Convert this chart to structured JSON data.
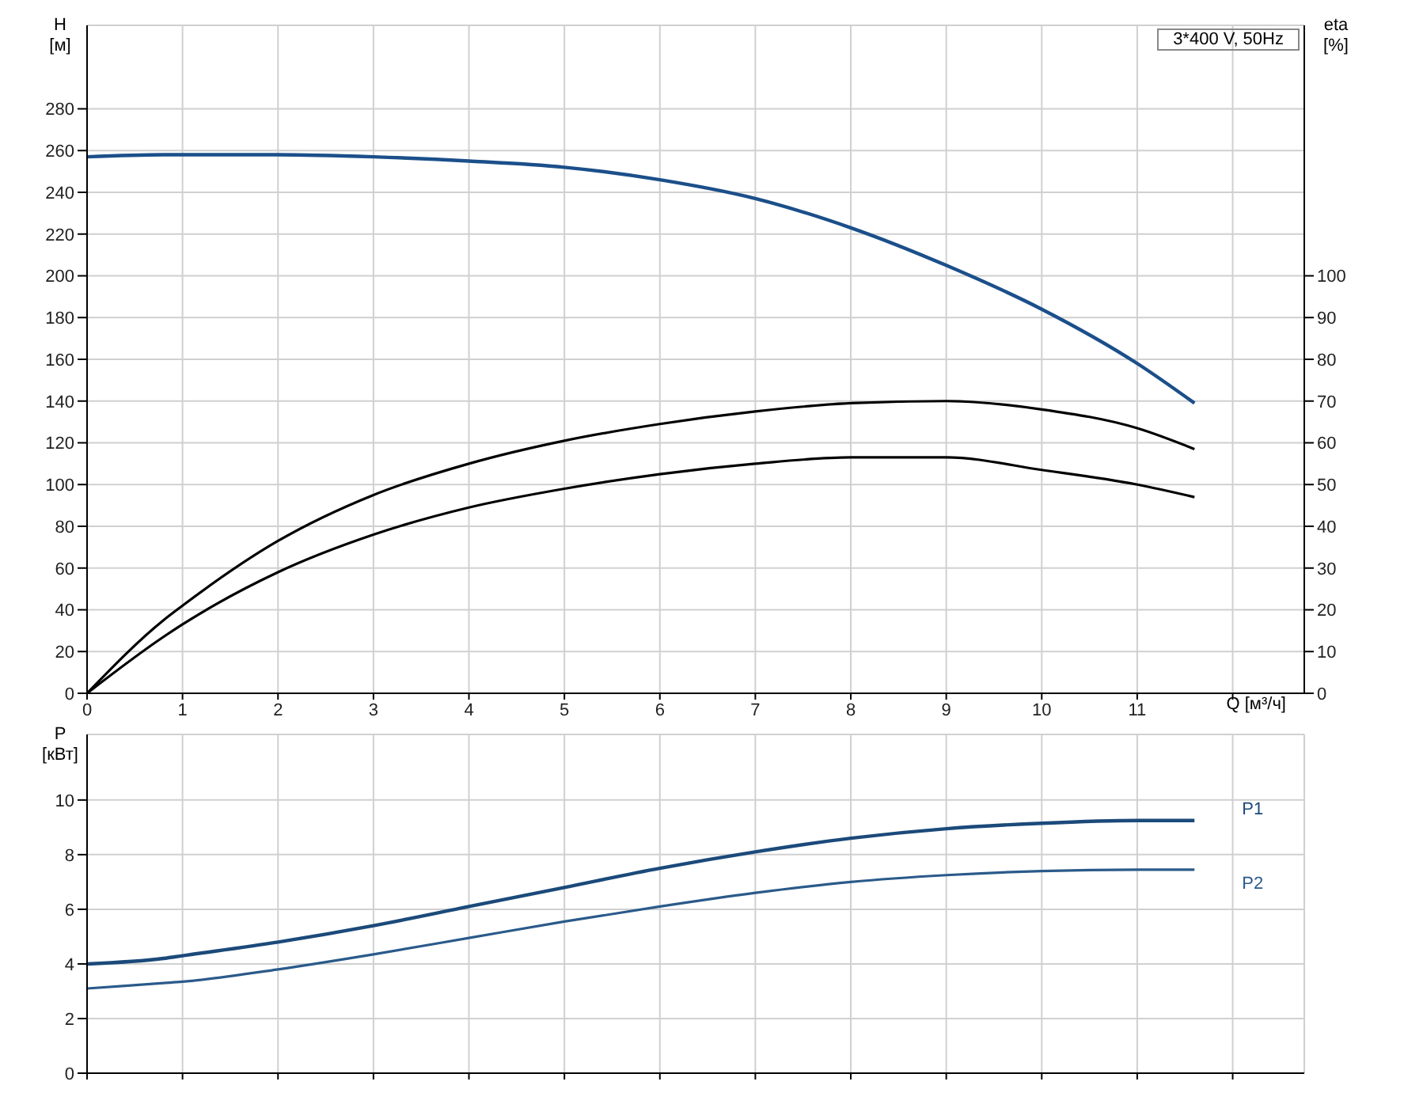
{
  "chart_data": [
    {
      "type": "line",
      "title": "3*400 V, 50Hz",
      "xlabel": "Q [м³/ч]",
      "ylabel": "H [м]",
      "y2label": "eta [%]",
      "grid": true,
      "legend": false,
      "marker": "none",
      "line_style": "solid",
      "xlim": [
        0,
        12.75
      ],
      "xticks": [
        0,
        1,
        2,
        3,
        4,
        5,
        6,
        7,
        8,
        9,
        10,
        11,
        {
          "value": 12,
          "label": null
        }
      ],
      "ylim": [
        0,
        320
      ],
      "yticks": [
        0,
        20,
        40,
        60,
        80,
        100,
        120,
        140,
        160,
        180,
        200,
        220,
        240,
        260,
        280
      ],
      "y2lim": [
        0,
        160
      ],
      "y2ticks": [
        0,
        10,
        20,
        30,
        40,
        50,
        60,
        70,
        80,
        90,
        100
      ],
      "series": [
        {
          "color": "#1b4f8a",
          "x": [
            0,
            0.8,
            1,
            2,
            3,
            4,
            5,
            6,
            7,
            8,
            9,
            10,
            11,
            11.6
          ],
          "values": [
            257,
            258,
            258,
            258,
            257,
            255,
            252,
            246,
            237,
            223,
            205,
            184,
            158,
            139
          ]
        },
        {
          "color": "#000000",
          "axis": "y2",
          "x": [
            0,
            0.8,
            1,
            2,
            3,
            4,
            5,
            6,
            7,
            8,
            9,
            10,
            11,
            11.6
          ],
          "values": [
            0,
            17.5,
            21,
            36.5,
            47.5,
            55,
            60.5,
            64.5,
            67.5,
            69.5,
            70,
            68,
            63.5,
            58.5
          ]
        },
        {
          "color": "#000000",
          "axis": "y2",
          "x": [
            0,
            0.8,
            1,
            2,
            3,
            4,
            5,
            6,
            7,
            8,
            9,
            10,
            11,
            11.6
          ],
          "values": [
            0,
            13.5,
            16.5,
            29,
            38,
            44.5,
            49,
            52.5,
            55,
            56.5,
            56.5,
            53.5,
            50,
            47
          ]
        }
      ]
    },
    {
      "type": "line",
      "ylabel": "P [кВт]",
      "grid": true,
      "legend": false,
      "marker": "none",
      "line_style": "solid",
      "tick_labels": "y",
      "xlim": [
        0,
        12.75
      ],
      "xticks": [
        0,
        1,
        2,
        3,
        4,
        5,
        6,
        7,
        8,
        9,
        10,
        11,
        12
      ],
      "ylim": [
        0,
        12.4
      ],
      "yticks": [
        0,
        2,
        4,
        6,
        8,
        10
      ],
      "series": [
        {
          "name": "P1",
          "color": "#1b4a7a",
          "x": [
            0,
            0.8,
            1,
            2,
            3,
            4,
            5,
            6,
            7,
            8,
            9,
            10,
            11,
            11.6
          ],
          "values": [
            4.0,
            4.2,
            4.3,
            4.8,
            5.4,
            6.1,
            6.8,
            7.5,
            8.1,
            8.6,
            8.95,
            9.15,
            9.25,
            9.25
          ]
        },
        {
          "name": "P2",
          "color": "#2a5a8a",
          "x": [
            0,
            0.8,
            1,
            2,
            3,
            4,
            5,
            6,
            7,
            8,
            9,
            10,
            11,
            11.6
          ],
          "values": [
            3.1,
            3.3,
            3.35,
            3.8,
            4.35,
            4.95,
            5.55,
            6.1,
            6.6,
            7.0,
            7.25,
            7.4,
            7.45,
            7.45
          ]
        }
      ]
    }
  ]
}
